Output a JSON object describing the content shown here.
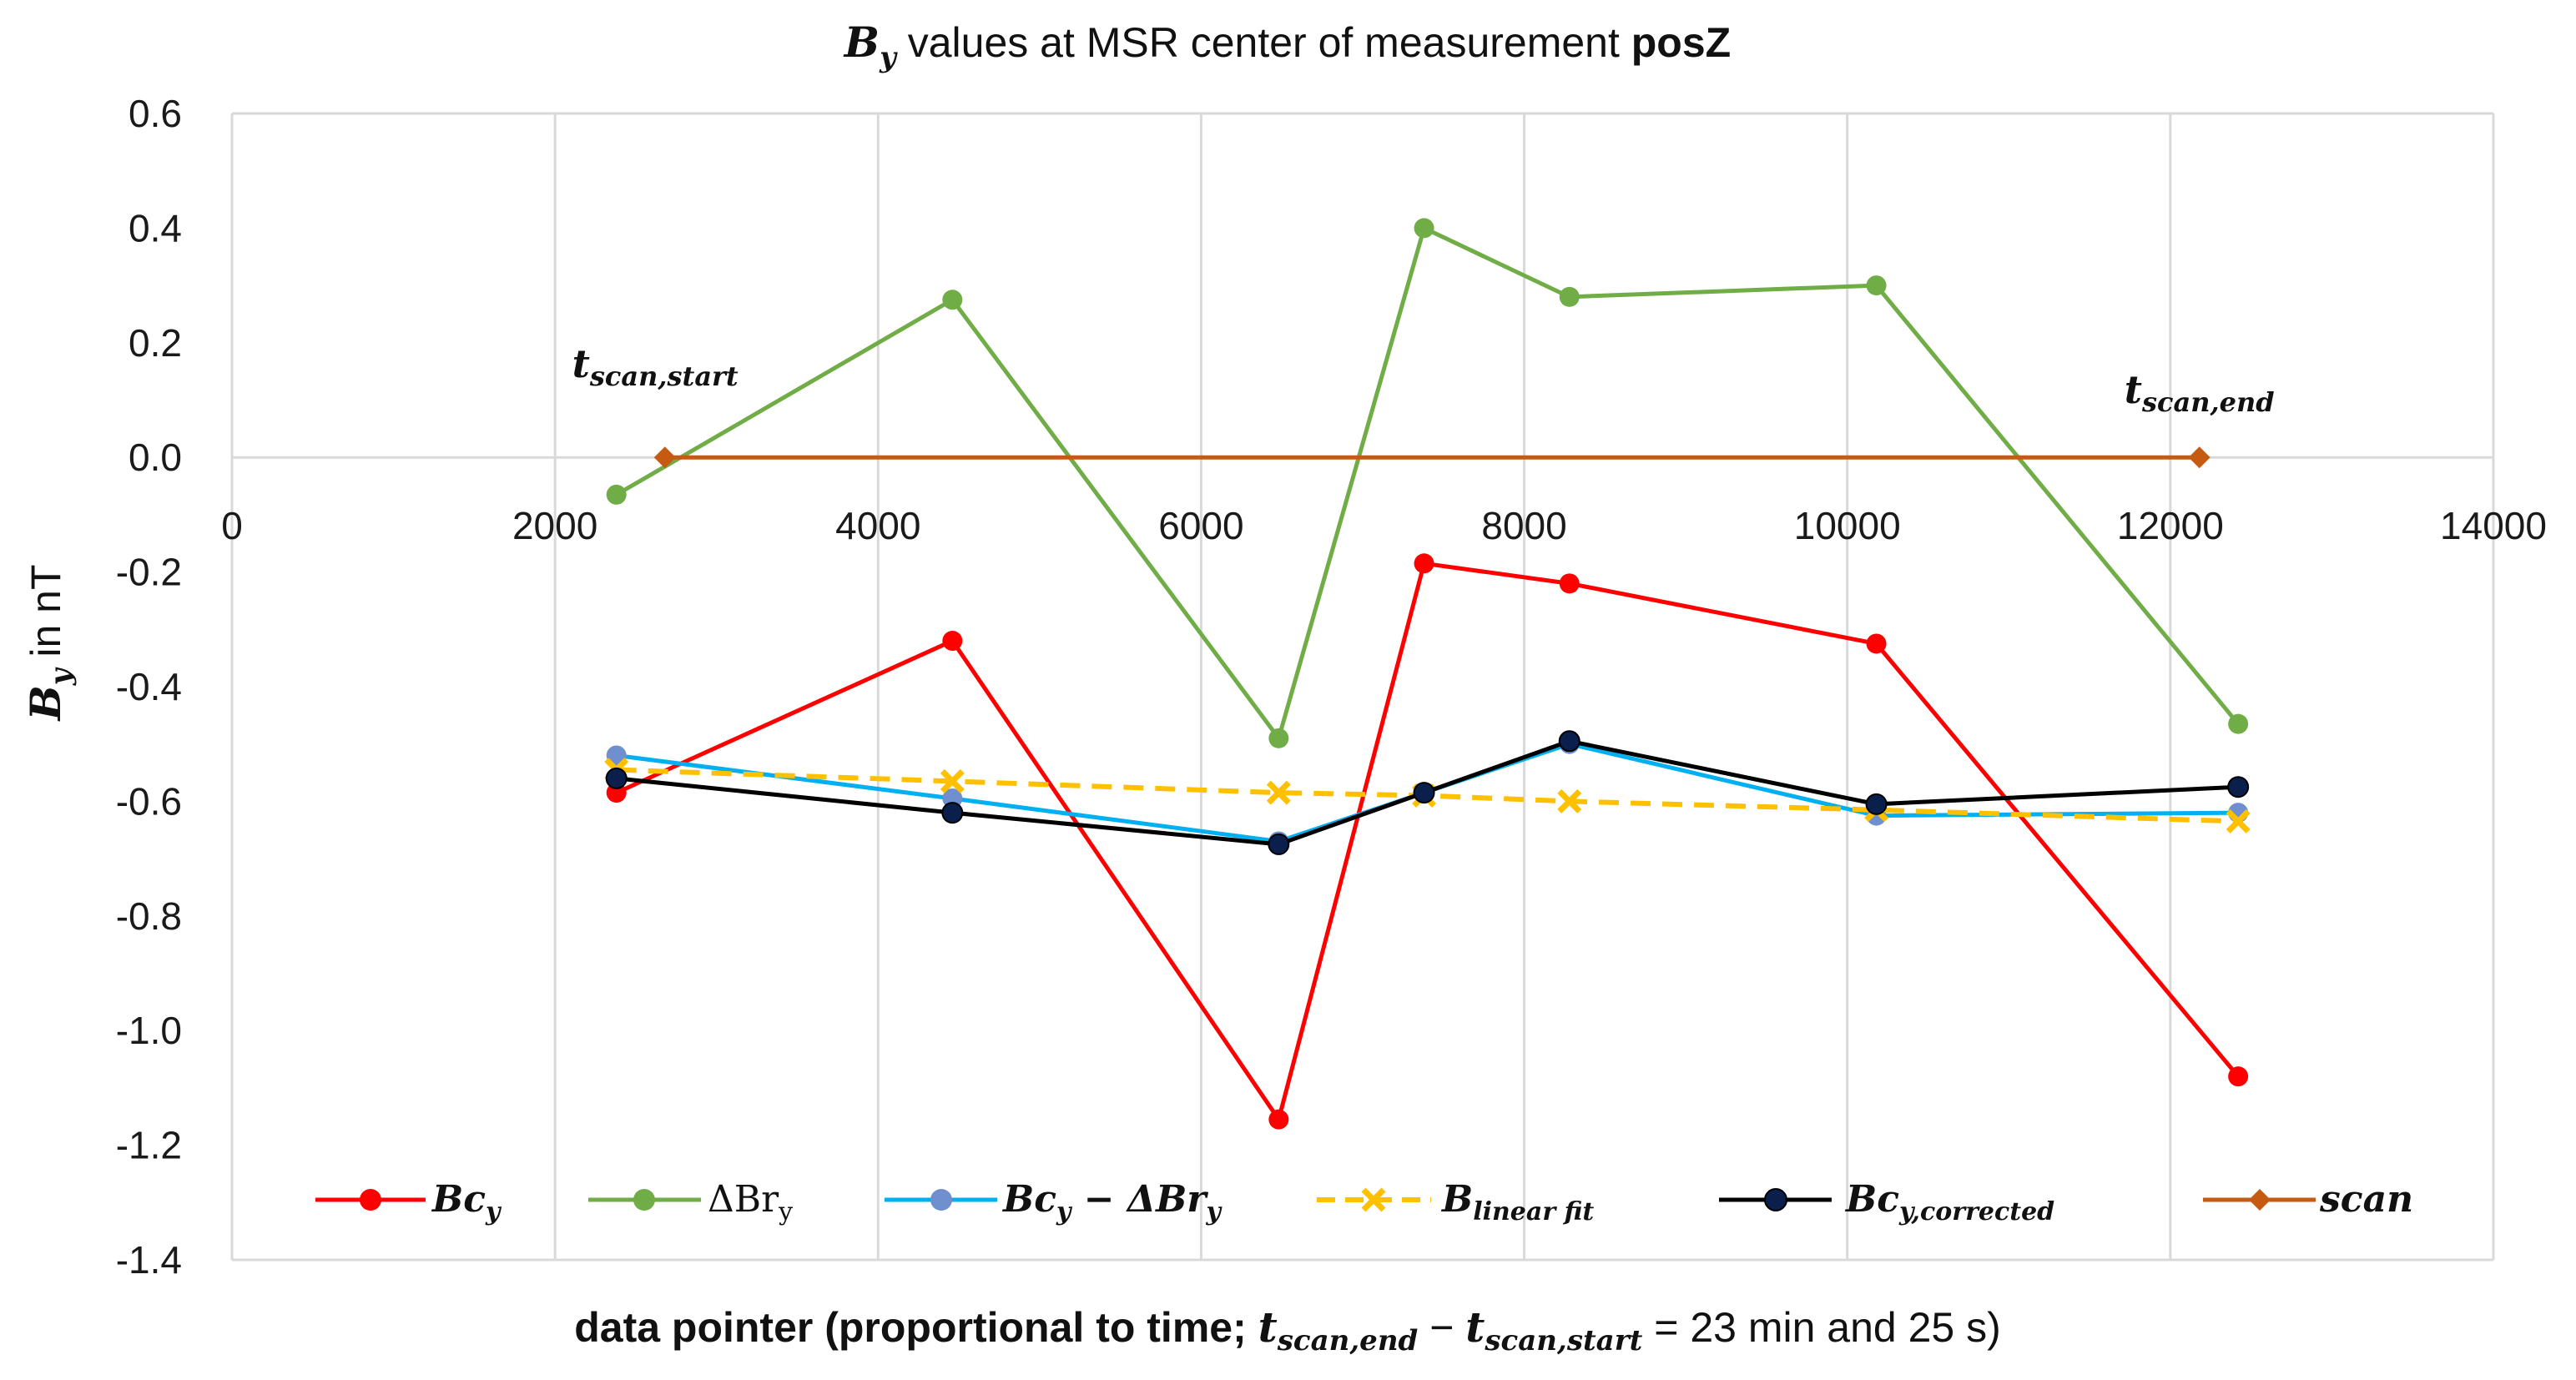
{
  "chart_data": {
    "type": "line",
    "title": {
      "by_symbol": "B",
      "by_sub": "y",
      "prefix": " values at MSR center of measurement ",
      "bold": "posZ"
    },
    "xlabel": {
      "prefix": "data pointer (proportional to time; ",
      "t1": "t",
      "t1_sub": "scan,end",
      "minus": " − ",
      "t2": "t",
      "t2_sub": "scan,start",
      "suffix": " = 23 min and 25 s)"
    },
    "ylabel": {
      "symbol": "B",
      "sub": "y",
      "suffix": " in nT"
    },
    "xlim": [
      0,
      14000
    ],
    "ylim": [
      -1.4,
      0.6
    ],
    "xticks": [
      0,
      2000,
      4000,
      6000,
      8000,
      10000,
      12000,
      14000
    ],
    "xtick_labels": [
      "0",
      "2000",
      "4000",
      "6000",
      "8000",
      "10000",
      "12000",
      "14000"
    ],
    "yticks": [
      0.6,
      0.4,
      0.2,
      0.0,
      -0.2,
      -0.4,
      -0.6,
      -0.8,
      -1.0,
      -1.2,
      -1.4
    ],
    "ytick_labels": [
      "0.6",
      "0.4",
      "0.2",
      "0.0",
      "-0.2",
      "-0.4",
      "-0.6",
      "-0.8",
      "-1.0",
      "-1.2",
      "-1.4"
    ],
    "grid": "vertical",
    "legend_position": "bottom",
    "series": [
      {
        "name": "Bc_y",
        "label_main": "Bc",
        "label_sub": "y",
        "color": "#ff0000",
        "marker": "circle",
        "dash": "solid",
        "x": [
          2380,
          4460,
          6480,
          7380,
          8280,
          10180,
          12420
        ],
        "y": [
          -0.585,
          -0.32,
          -1.155,
          -0.185,
          -0.22,
          -0.325,
          -1.08
        ]
      },
      {
        "name": "ΔBr_y",
        "label_main": "ΔBr",
        "label_sub": "y",
        "color": "#70ad47",
        "marker": "circle",
        "dash": "solid",
        "x": [
          2380,
          4460,
          6480,
          7380,
          8280,
          10180,
          12420
        ],
        "y": [
          -0.065,
          0.275,
          -0.49,
          0.4,
          0.28,
          0.3,
          -0.465
        ]
      },
      {
        "name": "Bc_y − ΔBr_y",
        "label_main": "Bc",
        "label_sub": "y",
        "label_mid": " − ΔBr",
        "label_sub2": "y",
        "color": "#00b0f0",
        "marker_color": "#6f8fcf",
        "marker": "circle",
        "dash": "solid",
        "x": [
          2380,
          4460,
          6480,
          7380,
          8280,
          10180,
          12420
        ],
        "y": [
          -0.52,
          -0.595,
          -0.67,
          -0.585,
          -0.5,
          -0.625,
          -0.62
        ]
      },
      {
        "name": "B_linear fit",
        "label_main": "B",
        "label_sub": "linear fit",
        "color": "#ffc000",
        "marker": "x",
        "dash": "dashed",
        "x": [
          2380,
          4460,
          6480,
          7380,
          8280,
          10180,
          12420
        ],
        "y": [
          -0.545,
          -0.565,
          -0.585,
          -0.59,
          -0.6,
          -0.615,
          -0.635
        ]
      },
      {
        "name": "Bc_y,corrected",
        "label_main": "Bc",
        "label_sub": "y,corrected",
        "color": "#000000",
        "marker_color": "#0b1f4d",
        "marker": "circle",
        "dash": "solid",
        "x": [
          2380,
          4460,
          6480,
          7380,
          8280,
          10180,
          12420
        ],
        "y": [
          -0.56,
          -0.62,
          -0.675,
          -0.585,
          -0.495,
          -0.605,
          -0.575
        ]
      },
      {
        "name": "scan",
        "label_main": "scan",
        "label_sub": "",
        "color": "#c55a11",
        "marker": "diamond",
        "dash": "solid",
        "x": [
          2680,
          12180
        ],
        "y": [
          0.0,
          0.0
        ]
      }
    ],
    "annotations": [
      {
        "main": "t",
        "sub": "scan,start",
        "x": 2620,
        "y": 0.14
      },
      {
        "main": "t",
        "sub": "scan,end",
        "x": 12180,
        "y": 0.095
      }
    ]
  }
}
